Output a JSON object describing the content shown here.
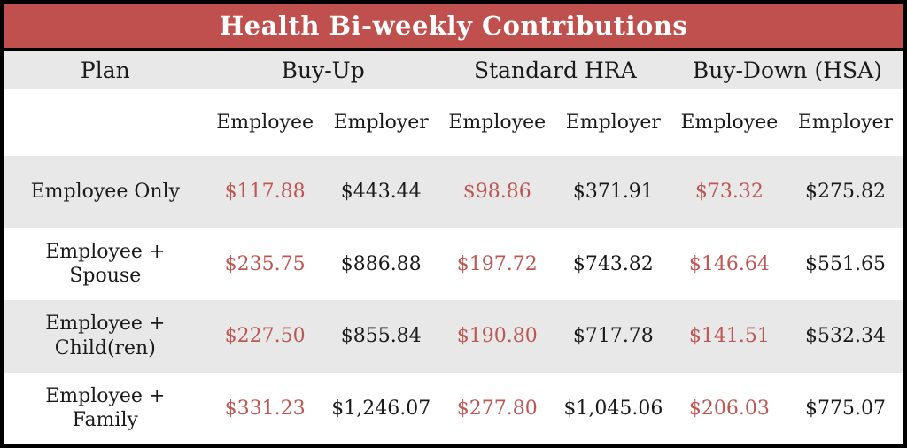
{
  "title": "Health Bi-weekly Contributions",
  "colors": {
    "title_bar_bg": "#c0504d",
    "title_text": "#ffffff",
    "alt_row_bg": "#e8e8e8",
    "employee_value_text": "#bd5754",
    "employer_value_text": "#1a1a1a",
    "border": "#000000"
  },
  "header": {
    "plan_label": "Plan",
    "groups": [
      {
        "label": "Buy-Up"
      },
      {
        "label": "Standard HRA"
      },
      {
        "label": "Buy-Down (HSA)"
      }
    ],
    "sub": [
      "Employee",
      "Employer",
      "Employee",
      "Employer",
      "Employee",
      "Employer"
    ]
  },
  "rows": [
    {
      "plan": "Employee Only",
      "values": [
        "$117.88",
        "$443.44",
        "$98.86",
        "$371.91",
        "$73.32",
        "$275.82"
      ]
    },
    {
      "plan": "Employee + Spouse",
      "values": [
        "$235.75",
        "$886.88",
        "$197.72",
        "$743.82",
        "$146.64",
        "$551.65"
      ]
    },
    {
      "plan": "Employee + Child(ren)",
      "values": [
        "$227.50",
        "$855.84",
        "$190.80",
        "$717.78",
        "$141.51",
        "$532.34"
      ]
    },
    {
      "plan": "Employee + Family",
      "values": [
        "$331.23",
        "$1,246.07",
        "$277.80",
        "$1,045.06",
        "$206.03",
        "$775.07"
      ]
    }
  ]
}
